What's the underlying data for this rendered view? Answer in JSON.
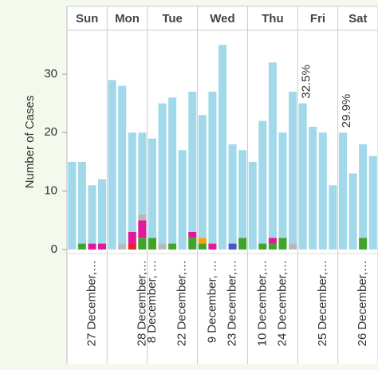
{
  "chart_data": {
    "type": "bar",
    "y_label": "Number of Cases",
    "ylim": [
      -0.7,
      37.5
    ],
    "yticks": [
      0,
      10,
      20,
      30
    ],
    "facets": [
      {
        "name": "Sun",
        "categories": [
          null,
          null,
          "27 December,…",
          null
        ]
      },
      {
        "name": "Mon",
        "categories": [
          null,
          null,
          null,
          "28 December,…"
        ]
      },
      {
        "name": "Tue",
        "categories": [
          "8 December, …",
          null,
          null,
          "22 December,…",
          null
        ]
      },
      {
        "name": "Wed",
        "categories": [
          null,
          "9 December, …",
          null,
          "23 December,…",
          null
        ]
      },
      {
        "name": "Thu",
        "categories": [
          null,
          "10 December,…",
          null,
          "24 December,…",
          null
        ]
      },
      {
        "name": "Fri",
        "categories": [
          null,
          null,
          "25 December,…",
          null
        ],
        "annotation": "32.5%"
      },
      {
        "name": "Sat",
        "categories": [
          null,
          null,
          "26 December,…",
          null
        ],
        "annotation": "29.9%"
      }
    ],
    "series": [
      {
        "color": "#3fa52a",
        "values": [
          0,
          1,
          0,
          0,
          0,
          0,
          0,
          2,
          2,
          0,
          1,
          0,
          2,
          1,
          0,
          0,
          0,
          2,
          0,
          1,
          1,
          2,
          0,
          0,
          0,
          0,
          0,
          0,
          0,
          2,
          0
        ]
      },
      {
        "color": "#e8202a",
        "values": [
          0,
          0,
          0,
          0,
          0,
          0,
          1,
          0,
          0,
          0,
          0,
          0,
          0,
          0,
          0,
          0,
          0,
          0,
          0,
          0,
          0,
          0,
          0,
          0,
          0,
          0,
          0,
          0,
          0,
          0,
          0
        ]
      },
      {
        "color": "#e0189a",
        "values": [
          0,
          0,
          1,
          1,
          0,
          0,
          2,
          3,
          0,
          0,
          0,
          0,
          1,
          0,
          1,
          0,
          0,
          0,
          0,
          0,
          1,
          0,
          0,
          0,
          0,
          0,
          0,
          0,
          0,
          0,
          0
        ]
      },
      {
        "color": "#f5a010",
        "values": [
          0,
          0,
          0,
          0,
          0,
          0,
          0,
          0,
          0,
          0,
          0,
          0,
          0,
          1,
          0,
          0,
          0,
          0,
          0,
          0,
          0,
          0,
          0,
          0,
          0,
          0,
          0,
          0,
          0,
          0,
          0
        ]
      },
      {
        "color": "#4a55c8",
        "values": [
          0,
          0,
          0,
          0,
          0,
          0,
          0,
          0,
          0,
          0,
          0,
          0,
          0,
          0,
          0,
          0,
          1,
          0,
          0,
          0,
          0,
          0,
          0,
          0,
          0,
          0,
          0,
          0,
          0,
          0,
          0
        ]
      },
      {
        "color": "#b8b8b8",
        "values": [
          0,
          0,
          0,
          0,
          0,
          1,
          0,
          1,
          0,
          1,
          0,
          0,
          0,
          0,
          0,
          0,
          0,
          0,
          0,
          0,
          0,
          0,
          1,
          0,
          0,
          0,
          0,
          0,
          0,
          0,
          0
        ]
      },
      {
        "color": "#a2d9ea",
        "values": [
          15,
          14,
          10,
          11,
          29,
          27,
          17,
          14,
          17,
          24,
          25,
          17,
          24,
          21,
          26,
          35,
          17,
          15,
          15,
          21,
          30,
          18,
          26,
          25,
          21,
          20,
          11,
          20,
          13,
          16,
          16
        ]
      }
    ]
  }
}
